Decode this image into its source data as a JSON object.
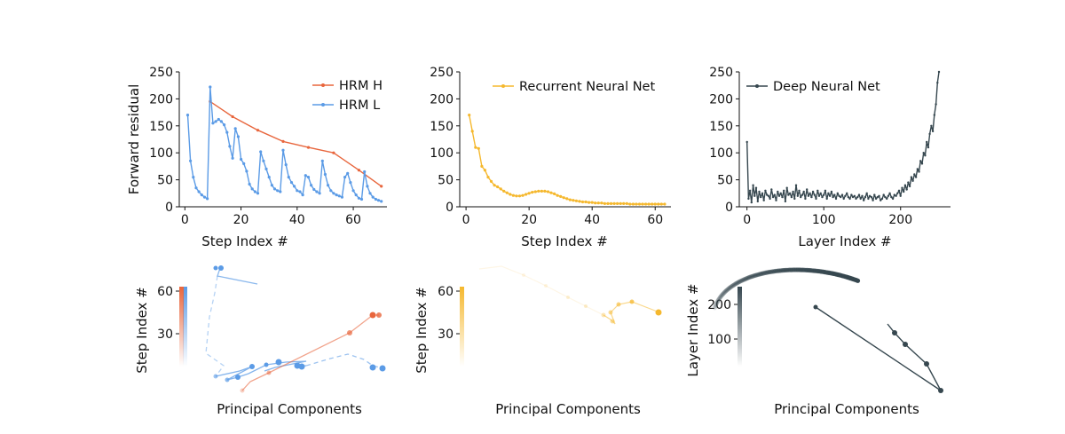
{
  "colors": {
    "hrm_h": "#e8663d",
    "hrm_l": "#5b9be6",
    "rnn": "#f5b82e",
    "dnn": "#36474f"
  },
  "chart_data": [
    {
      "type": "line",
      "xlabel": "Step Index #",
      "ylabel": "Forward residual",
      "xlim": [
        -2,
        72
      ],
      "ylim": [
        0,
        250
      ],
      "xticks": [
        "0",
        "20",
        "40",
        "60"
      ],
      "yticks": [
        "0",
        "50",
        "100",
        "150",
        "200",
        "250"
      ],
      "legend_position": "top-right",
      "series": [
        {
          "name": "HRM H",
          "color": "#e8663d",
          "x": [
            9,
            17,
            26,
            35,
            44,
            53,
            62,
            70
          ],
          "y": [
            195,
            167,
            142,
            121,
            110,
            100,
            68,
            38
          ]
        },
        {
          "name": "HRM L",
          "color": "#5b9be6",
          "x": [
            1,
            2,
            3,
            4,
            5,
            6,
            7,
            8,
            9,
            10,
            11,
            12,
            13,
            14,
            15,
            16,
            17,
            18,
            19,
            20,
            21,
            22,
            23,
            24,
            25,
            26,
            27,
            28,
            29,
            30,
            31,
            32,
            33,
            34,
            35,
            36,
            37,
            38,
            39,
            40,
            41,
            42,
            43,
            44,
            45,
            46,
            47,
            48,
            49,
            50,
            51,
            52,
            53,
            54,
            55,
            56,
            57,
            58,
            59,
            60,
            61,
            62,
            63,
            64,
            65,
            66,
            67,
            68,
            69,
            70
          ],
          "y": [
            170,
            85,
            55,
            35,
            28,
            22,
            18,
            15,
            222,
            155,
            158,
            162,
            158,
            152,
            138,
            112,
            90,
            145,
            130,
            88,
            80,
            66,
            42,
            33,
            28,
            25,
            102,
            85,
            70,
            55,
            40,
            33,
            30,
            28,
            105,
            78,
            55,
            45,
            38,
            30,
            28,
            22,
            58,
            55,
            40,
            32,
            28,
            25,
            85,
            60,
            40,
            30,
            25,
            22,
            20,
            18,
            55,
            62,
            45,
            30,
            22,
            16,
            14,
            65,
            38,
            25,
            18,
            14,
            12,
            10
          ]
        }
      ]
    },
    {
      "type": "line",
      "xlabel": "Step Index #",
      "xlim": [
        -2,
        65
      ],
      "ylim": [
        0,
        250
      ],
      "xticks": [
        "0",
        "20",
        "40",
        "60"
      ],
      "yticks": [
        "0",
        "50",
        "100",
        "150",
        "200",
        "250"
      ],
      "legend_position": "top-right",
      "series": [
        {
          "name": "Recurrent Neural Net",
          "color": "#f5b82e",
          "x": [
            1,
            2,
            3,
            4,
            5,
            6,
            7,
            8,
            9,
            10,
            11,
            12,
            13,
            14,
            15,
            16,
            17,
            18,
            19,
            20,
            21,
            22,
            23,
            24,
            25,
            26,
            27,
            28,
            29,
            30,
            31,
            32,
            33,
            34,
            35,
            36,
            37,
            38,
            39,
            40,
            41,
            42,
            43,
            44,
            45,
            46,
            47,
            48,
            49,
            50,
            51,
            52,
            53,
            54,
            55,
            56,
            57,
            58,
            59,
            60,
            61,
            62,
            63
          ],
          "y": [
            170,
            140,
            110,
            108,
            75,
            68,
            55,
            47,
            40,
            37,
            33,
            29,
            26,
            23,
            21,
            20,
            20,
            21,
            23,
            25,
            27,
            28,
            29,
            29,
            29,
            28,
            26,
            24,
            21,
            19,
            17,
            15,
            13,
            12,
            11,
            10,
            9,
            9,
            8,
            8,
            7,
            7,
            7,
            6,
            6,
            6,
            6,
            6,
            6,
            6,
            6,
            5,
            5,
            5,
            5,
            5,
            5,
            5,
            5,
            5,
            5,
            5,
            5
          ]
        }
      ]
    },
    {
      "type": "line",
      "xlabel": "Layer Index #",
      "xlim": [
        -10,
        265
      ],
      "ylim": [
        0,
        250
      ],
      "xticks": [
        "0",
        "100",
        "200"
      ],
      "yticks": [
        "0",
        "50",
        "100",
        "150",
        "200",
        "250"
      ],
      "legend_position": "top-right",
      "series": [
        {
          "name": "Deep Neural Net",
          "color": "#36474f",
          "x": [
            0,
            2,
            4,
            6,
            8,
            10,
            12,
            14,
            16,
            18,
            20,
            22,
            24,
            26,
            28,
            30,
            32,
            34,
            36,
            38,
            40,
            42,
            44,
            46,
            48,
            50,
            52,
            54,
            56,
            58,
            60,
            62,
            64,
            66,
            68,
            70,
            72,
            74,
            76,
            78,
            80,
            82,
            84,
            86,
            88,
            90,
            92,
            94,
            96,
            98,
            100,
            102,
            104,
            106,
            108,
            110,
            112,
            114,
            116,
            118,
            120,
            122,
            124,
            126,
            128,
            130,
            132,
            134,
            136,
            138,
            140,
            142,
            144,
            146,
            148,
            150,
            152,
            154,
            156,
            158,
            160,
            162,
            164,
            166,
            168,
            170,
            172,
            174,
            176,
            178,
            180,
            182,
            184,
            186,
            188,
            190,
            192,
            194,
            196,
            198,
            200,
            202,
            204,
            206,
            208,
            210,
            212,
            214,
            216,
            218,
            220,
            222,
            224,
            226,
            228,
            230,
            232,
            234,
            236,
            238,
            240,
            242,
            244,
            246,
            248,
            250
          ],
          "y": [
            120,
            15,
            30,
            8,
            40,
            20,
            35,
            10,
            28,
            18,
            25,
            12,
            30,
            22,
            20,
            15,
            32,
            18,
            22,
            12,
            28,
            20,
            25,
            18,
            30,
            10,
            35,
            22,
            25,
            18,
            28,
            15,
            40,
            20,
            30,
            18,
            22,
            28,
            15,
            32,
            20,
            25,
            18,
            28,
            22,
            15,
            30,
            20,
            25,
            18,
            22,
            30,
            15,
            25,
            20,
            28,
            18,
            22,
            15,
            25,
            20,
            18,
            22,
            15,
            20,
            25,
            18,
            15,
            22,
            18,
            20,
            15,
            18,
            22,
            15,
            20,
            12,
            18,
            25,
            15,
            20,
            18,
            12,
            22,
            15,
            18,
            20,
            12,
            15,
            22,
            18,
            15,
            20,
            25,
            18,
            15,
            22,
            20,
            25,
            30,
            20,
            35,
            28,
            40,
            32,
            45,
            38,
            55,
            48,
            60,
            55,
            70,
            65,
            85,
            80,
            100,
            95,
            120,
            110,
            135,
            150,
            140,
            170,
            190,
            230,
            250
          ]
        }
      ]
    },
    {
      "type": "scatter",
      "xlabel": "Principal Components",
      "ylabel": "Step Index #",
      "colorbar_ticks": [
        "30",
        "60"
      ]
    },
    {
      "type": "scatter",
      "xlabel": "Principal Components",
      "ylabel": "Step Index #",
      "colorbar_ticks": [
        "30",
        "60"
      ]
    },
    {
      "type": "scatter",
      "xlabel": "Principal Components",
      "ylabel": "Layer Index #",
      "colorbar_ticks": [
        "100",
        "200"
      ]
    }
  ]
}
